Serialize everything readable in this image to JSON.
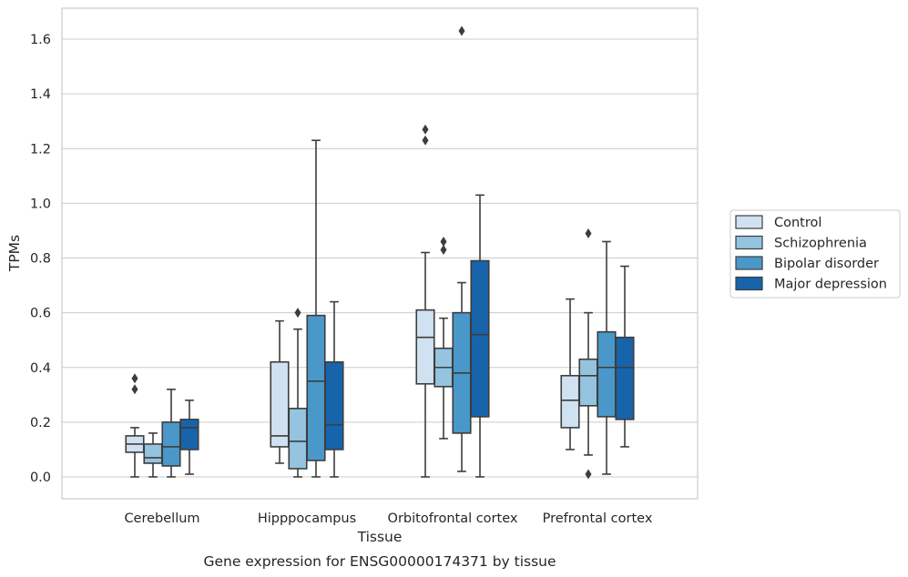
{
  "chart_data": {
    "type": "box",
    "caption": "Gene expression for ENSG00000174371 by tissue",
    "xlabel": "Tissue",
    "ylabel": "TPMs",
    "ylim": [
      -0.08,
      1.72
    ],
    "yticks": [
      "0.0",
      "0.2",
      "0.4",
      "0.6",
      "0.8",
      "1.0",
      "1.2",
      "1.4",
      "1.6"
    ],
    "grid": "horizontal",
    "legend_position": "right",
    "categories": [
      "Cerebellum",
      "Hipppocampus",
      "Orbitofrontal cortex",
      "Prefrontal cortex"
    ],
    "series": [
      {
        "name": "Control",
        "color": "#d0e1f2",
        "boxes": [
          {
            "min": 0.0,
            "q1": 0.09,
            "median": 0.12,
            "q3": 0.15,
            "max": 0.18,
            "outliers": [
              0.32,
              0.36
            ]
          },
          {
            "min": 0.05,
            "q1": 0.11,
            "median": 0.15,
            "q3": 0.42,
            "max": 0.57,
            "outliers": []
          },
          {
            "min": 0.0,
            "q1": 0.34,
            "median": 0.51,
            "q3": 0.61,
            "max": 0.82,
            "outliers": [
              1.23,
              1.27
            ]
          },
          {
            "min": 0.1,
            "q1": 0.18,
            "median": 0.28,
            "q3": 0.37,
            "max": 0.65,
            "outliers": []
          }
        ]
      },
      {
        "name": "Schizophrenia",
        "color": "#94c4df",
        "boxes": [
          {
            "min": 0.0,
            "q1": 0.05,
            "median": 0.07,
            "q3": 0.12,
            "max": 0.16,
            "outliers": []
          },
          {
            "min": 0.0,
            "q1": 0.03,
            "median": 0.13,
            "q3": 0.25,
            "max": 0.54,
            "outliers": [
              0.6
            ]
          },
          {
            "min": 0.14,
            "q1": 0.33,
            "median": 0.4,
            "q3": 0.47,
            "max": 0.58,
            "outliers": [
              0.83,
              0.86
            ]
          },
          {
            "min": 0.08,
            "q1": 0.26,
            "median": 0.37,
            "q3": 0.43,
            "max": 0.6,
            "outliers": [
              0.01,
              0.89
            ]
          }
        ]
      },
      {
        "name": "Bipolar disorder",
        "color": "#4a98c9",
        "boxes": [
          {
            "min": 0.0,
            "q1": 0.04,
            "median": 0.11,
            "q3": 0.2,
            "max": 0.32,
            "outliers": []
          },
          {
            "min": 0.0,
            "q1": 0.06,
            "median": 0.35,
            "q3": 0.59,
            "max": 1.23,
            "outliers": []
          },
          {
            "min": 0.02,
            "q1": 0.16,
            "median": 0.38,
            "q3": 0.6,
            "max": 0.71,
            "outliers": [
              1.63
            ]
          },
          {
            "min": 0.01,
            "q1": 0.22,
            "median": 0.4,
            "q3": 0.53,
            "max": 0.86,
            "outliers": []
          }
        ]
      },
      {
        "name": "Major depression",
        "color": "#1764ab",
        "boxes": [
          {
            "min": 0.01,
            "q1": 0.1,
            "median": 0.18,
            "q3": 0.21,
            "max": 0.28,
            "outliers": []
          },
          {
            "min": 0.0,
            "q1": 0.1,
            "median": 0.19,
            "q3": 0.42,
            "max": 0.64,
            "outliers": []
          },
          {
            "min": 0.0,
            "q1": 0.22,
            "median": 0.52,
            "q3": 0.79,
            "max": 1.03,
            "outliers": []
          },
          {
            "min": 0.11,
            "q1": 0.21,
            "median": 0.4,
            "q3": 0.51,
            "max": 0.77,
            "outliers": []
          }
        ]
      }
    ]
  }
}
